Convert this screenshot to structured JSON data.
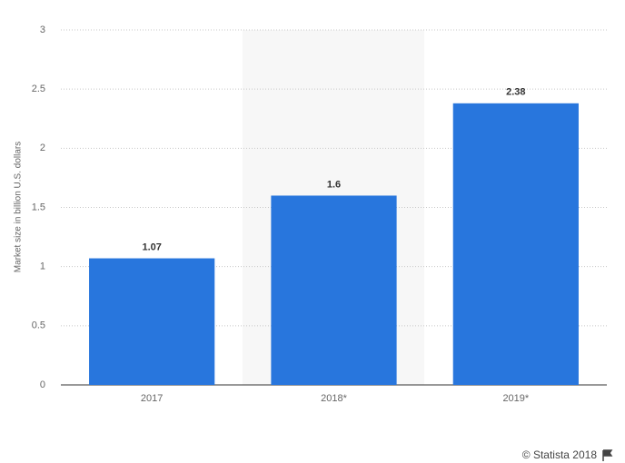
{
  "chart_data": {
    "type": "bar",
    "y_label": "Market size in billion U.S. dollars",
    "categories": [
      "2017",
      "2018*",
      "2019*"
    ],
    "values": [
      1.07,
      1.6,
      2.38
    ],
    "color": "#2876dd",
    "ylim": [
      0,
      3
    ],
    "yticks": [
      0,
      0.5,
      1,
      1.5,
      2,
      2.5,
      3
    ],
    "grid": true,
    "credit": "© Statista 2018"
  }
}
